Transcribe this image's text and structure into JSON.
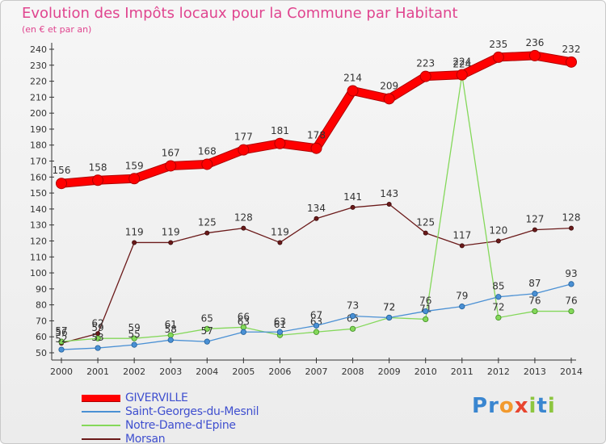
{
  "title": "Evolution des Impôts locaux pour la Commune par Habitant",
  "subtitle": "(en € et par an)",
  "logo": {
    "chars": [
      "P",
      "r",
      "o",
      "x",
      "i",
      "t",
      "i"
    ],
    "colors": [
      "#3a86d0",
      "#3a86d0",
      "#f29a2e",
      "#e8452f",
      "#8dc63f",
      "#3a86d0",
      "#8dc63f"
    ]
  },
  "chart_data": {
    "type": "line",
    "title": "Evolution des Impôts locaux pour la Commune par Habitant",
    "subtitle": "(en € et par an)",
    "x": [
      "2000",
      "2001",
      "2002",
      "2003",
      "2004",
      "2005",
      "2006",
      "2007",
      "2008",
      "2009",
      "2010",
      "2011",
      "2012",
      "2013",
      "2014"
    ],
    "yticks": [
      50,
      60,
      70,
      80,
      90,
      100,
      110,
      120,
      130,
      140,
      150,
      160,
      170,
      180,
      190,
      200,
      210,
      220,
      230,
      240
    ],
    "ylim": [
      50,
      240
    ],
    "grid": false,
    "legend_position": "bottom-left",
    "series": [
      {
        "name": "GIVERVILLE",
        "color": "#e00000",
        "values": [
          156,
          158,
          159,
          167,
          168,
          177,
          181,
          178,
          214,
          209,
          223,
          224,
          235,
          236,
          232
        ]
      },
      {
        "name": "Saint-Georges-du-Mesnil",
        "color": "#3a8fd0",
        "values": [
          52,
          53,
          55,
          58,
          57,
          63,
          63,
          67,
          73,
          72,
          76,
          79,
          85,
          87,
          93
        ]
      },
      {
        "name": "Notre-Dame-d'Epine",
        "color": "#7ed650",
        "values": [
          57,
          59,
          59,
          61,
          65,
          66,
          61,
          63,
          65,
          72,
          71,
          224,
          72,
          76,
          76
        ]
      },
      {
        "name": "Morsan",
        "color": "#6b1a1a",
        "values": [
          56,
          62,
          119,
          119,
          125,
          128,
          119,
          134,
          141,
          143,
          125,
          117,
          120,
          127,
          128
        ]
      }
    ]
  }
}
